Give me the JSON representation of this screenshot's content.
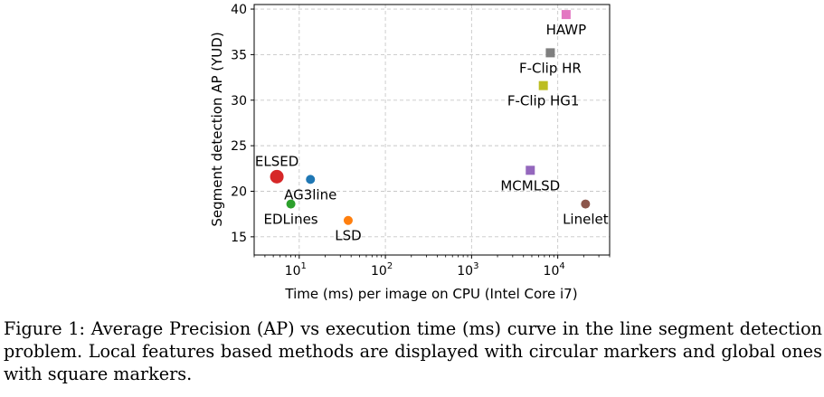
{
  "caption": {
    "label": "Figure 1:",
    "text": "Average Precision (AP) vs execution time (ms) curve in the line segment detection problem. Local features based methods are displayed with circular markers and global ones with square markers."
  },
  "chart_data": {
    "type": "scatter",
    "title": "",
    "xlabel": "Time (ms) per image on CPU (Intel Core i7)",
    "ylabel": "Segment detection AP (YUD)",
    "xscale": "log",
    "xlim": [
      3,
      40000
    ],
    "ylim": [
      13,
      40.5
    ],
    "grid": true,
    "x_ticks": [
      {
        "value": 10,
        "base": "10",
        "exp": "1"
      },
      {
        "value": 100,
        "base": "10",
        "exp": "2"
      },
      {
        "value": 1000,
        "base": "10",
        "exp": "3"
      },
      {
        "value": 10000,
        "base": "10",
        "exp": "4"
      }
    ],
    "y_ticks": [
      15,
      20,
      25,
      30,
      35,
      40
    ],
    "points": [
      {
        "name": "ELSED",
        "x": 5.5,
        "y": 21.6,
        "marker": "circle",
        "size": "large",
        "color": "#d62728",
        "label_pos": "above-left"
      },
      {
        "name": "AG3line",
        "x": 13.5,
        "y": 21.3,
        "marker": "circle",
        "size": "small",
        "color": "#1f77b4",
        "label_pos": "below"
      },
      {
        "name": "EDLines",
        "x": 8.0,
        "y": 18.6,
        "marker": "circle",
        "size": "small",
        "color": "#2ca02c",
        "label_pos": "below"
      },
      {
        "name": "LSD",
        "x": 37.0,
        "y": 16.8,
        "marker": "circle",
        "size": "small",
        "color": "#ff7f0e",
        "label_pos": "below"
      },
      {
        "name": "MCMLSD",
        "x": 4800,
        "y": 22.3,
        "marker": "square",
        "size": "small",
        "color": "#9467bd",
        "label_pos": "below"
      },
      {
        "name": "Linelet",
        "x": 21000,
        "y": 18.6,
        "marker": "circle",
        "size": "small",
        "color": "#8c564b",
        "label_pos": "below"
      },
      {
        "name": "HAWP",
        "x": 12500,
        "y": 39.4,
        "marker": "square",
        "size": "small",
        "color": "#e377c2",
        "label_pos": "below"
      },
      {
        "name": "F-Clip HR",
        "x": 8200,
        "y": 35.2,
        "marker": "square",
        "size": "small",
        "color": "#7f7f7f",
        "label_pos": "below"
      },
      {
        "name": "F-Clip HG1",
        "x": 6800,
        "y": 31.6,
        "marker": "square",
        "size": "small",
        "color": "#bcbd22",
        "label_pos": "below"
      }
    ]
  }
}
